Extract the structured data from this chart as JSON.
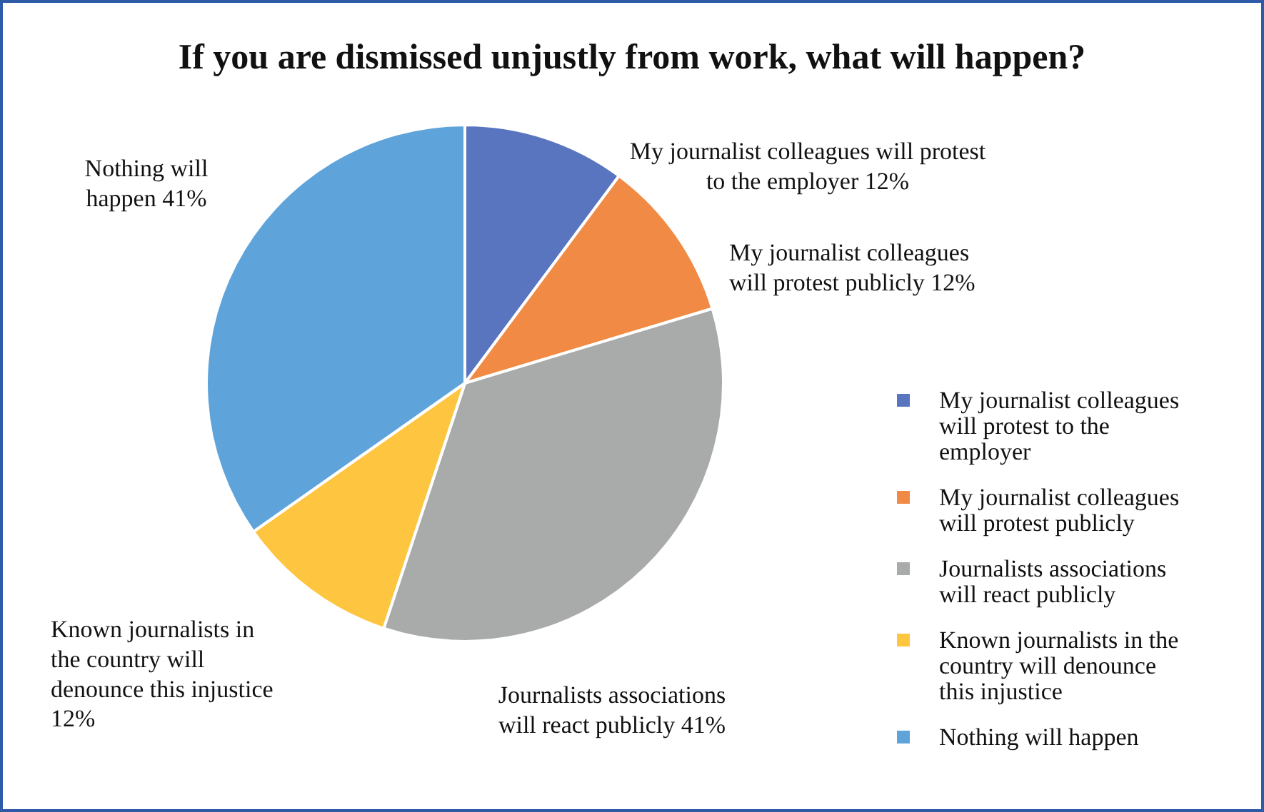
{
  "chart_data": {
    "type": "pie",
    "title": "If you are dismissed unjustly from work, what will happen?",
    "categories": [
      "My journalist colleagues will protest to the employer",
      "My journalist colleagues will protest publicly",
      "Journalists associations will react publicly",
      "Known journalists in the country will denounce this injustice",
      "Nothing will happen"
    ],
    "values": [
      12,
      12,
      41,
      12,
      41
    ],
    "value_labels": [
      "My journalist colleagues will protest to the employer 12%",
      "My journalist colleagues will protest publicly 12%",
      "Journalists associations will react publicly 41%",
      "Known journalists in the country will denounce this injustice 12%",
      "Nothing will happen 41%"
    ],
    "colors": [
      "#5a75c0",
      "#f08a45",
      "#a9aaaa",
      "#fec540",
      "#5ea4db"
    ],
    "legend": "right"
  }
}
